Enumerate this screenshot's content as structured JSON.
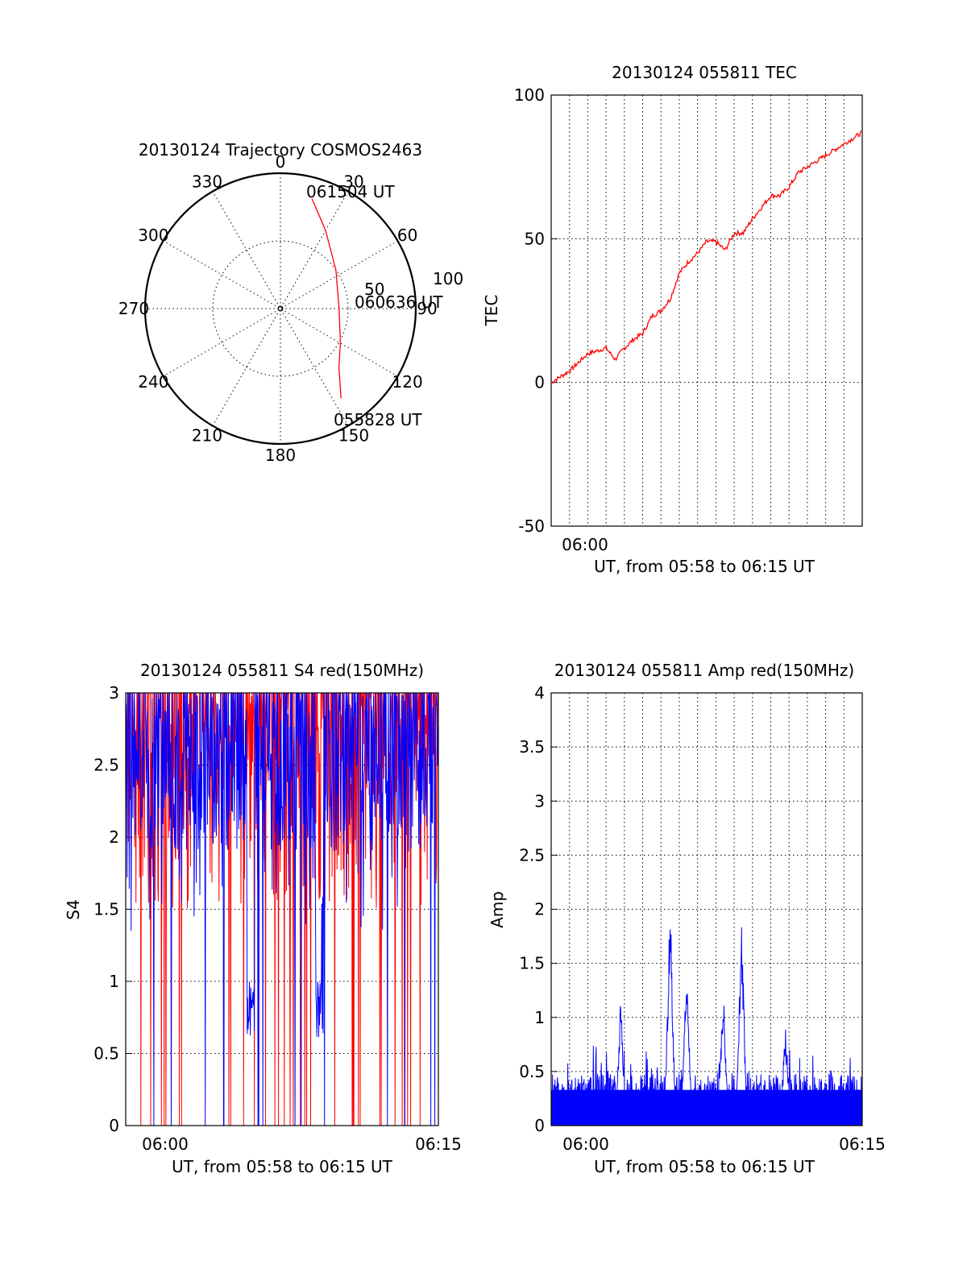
{
  "chart_data": [
    {
      "type": "polar",
      "title": "20130124 Trajectory COSMOS2463",
      "angle_labels": [
        "0",
        "30",
        "60",
        "90",
        "120",
        "150",
        "180",
        "210",
        "240",
        "270",
        "300",
        "330"
      ],
      "radius_labels": [
        "50",
        "100"
      ],
      "series": [
        {
          "color": "#ff0000",
          "points": [
            {
              "azimuth": 16,
              "elevation": 14
            },
            {
              "azimuth": 30,
              "elevation": 30
            },
            {
              "azimuth": 55,
              "elevation": 45
            },
            {
              "azimuth": 90,
              "elevation": 51
            },
            {
              "azimuth": 120,
              "elevation": 44
            },
            {
              "azimuth": 135,
              "elevation": 35
            },
            {
              "azimuth": 146,
              "elevation": 18
            }
          ]
        }
      ],
      "annotations": [
        {
          "text": "061504 UT",
          "azimuth": 16,
          "elevation": 14
        },
        {
          "text": "060636 UT",
          "azimuth": 90,
          "elevation": 51
        },
        {
          "text": "055828 UT",
          "azimuth": 146,
          "elevation": 18
        }
      ]
    },
    {
      "type": "line",
      "title": "20130124 055811 TEC",
      "xlabel": "UT, from 05:58 to 06:15 UT",
      "ylabel": "TEC",
      "xlim": [
        0,
        17
      ],
      "ylim": [
        -50,
        100
      ],
      "yticks": [
        "100",
        "50",
        "0",
        "-50"
      ],
      "xtick_labels": [
        "06:00"
      ],
      "grid": true,
      "series": [
        {
          "color": "#ff0000",
          "x": [
            0,
            0.5,
            1,
            1.5,
            2,
            2.5,
            3,
            3.5,
            4,
            4.5,
            5,
            5.5,
            6,
            6.5,
            7,
            7.5,
            8,
            8.5,
            9,
            9.5,
            10,
            10.5,
            11,
            11.5,
            12,
            12.5,
            13,
            13.5,
            14,
            14.5,
            15,
            15.5,
            16,
            16.5,
            17
          ],
          "y": [
            0,
            2,
            4,
            7,
            10,
            11,
            12,
            8,
            12,
            15,
            17,
            23,
            25,
            29,
            38,
            42,
            45,
            49,
            49,
            46,
            52,
            52,
            57,
            61,
            65,
            65,
            68,
            73,
            75,
            77,
            79,
            81,
            83,
            85,
            87
          ]
        }
      ]
    },
    {
      "type": "line",
      "title": "20130124 055811 S4 red(150MHz)",
      "xlabel": "UT, from 05:58 to 06:15 UT",
      "ylabel": "S4",
      "xlim": [
        0,
        17
      ],
      "ylim": [
        0,
        3
      ],
      "yticks": [
        "3",
        "2.5",
        "2",
        "1.5",
        "1",
        "0.5",
        "0"
      ],
      "xtick_labels": [
        "06:00",
        "06:15"
      ],
      "grid": true,
      "series": [
        {
          "color": "#ff0000",
          "note_values": "dense noisy series saturating near 3 with drops to 0"
        },
        {
          "color": "#0000ff",
          "note_values": "dense noisy series between ~1.5 and 3 with dips near 0.7 around 06:05 and 06:09"
        }
      ]
    },
    {
      "type": "line",
      "title": "20130124 055811 Amp red(150MHz)",
      "xlabel": "UT, from 05:58 to 06:15 UT",
      "ylabel": "Amp",
      "xlim": [
        0,
        17
      ],
      "ylim": [
        0,
        4
      ],
      "yticks": [
        "4",
        "3.5",
        "3",
        "2.5",
        "2",
        "1.5",
        "1",
        "0.5",
        "0"
      ],
      "xtick_labels": [
        "06:00",
        "06:15"
      ],
      "grid": true,
      "series": [
        {
          "color": "#0000ff",
          "baseline": 0.35,
          "spikes": [
            {
              "x": 3.8,
              "y": 1.22
            },
            {
              "x": 6.5,
              "y": 2.2
            },
            {
              "x": 7.4,
              "y": 1.53
            },
            {
              "x": 9.4,
              "y": 1.32
            },
            {
              "x": 10.4,
              "y": 2.0
            },
            {
              "x": 12.8,
              "y": 0.93
            }
          ]
        }
      ]
    }
  ]
}
